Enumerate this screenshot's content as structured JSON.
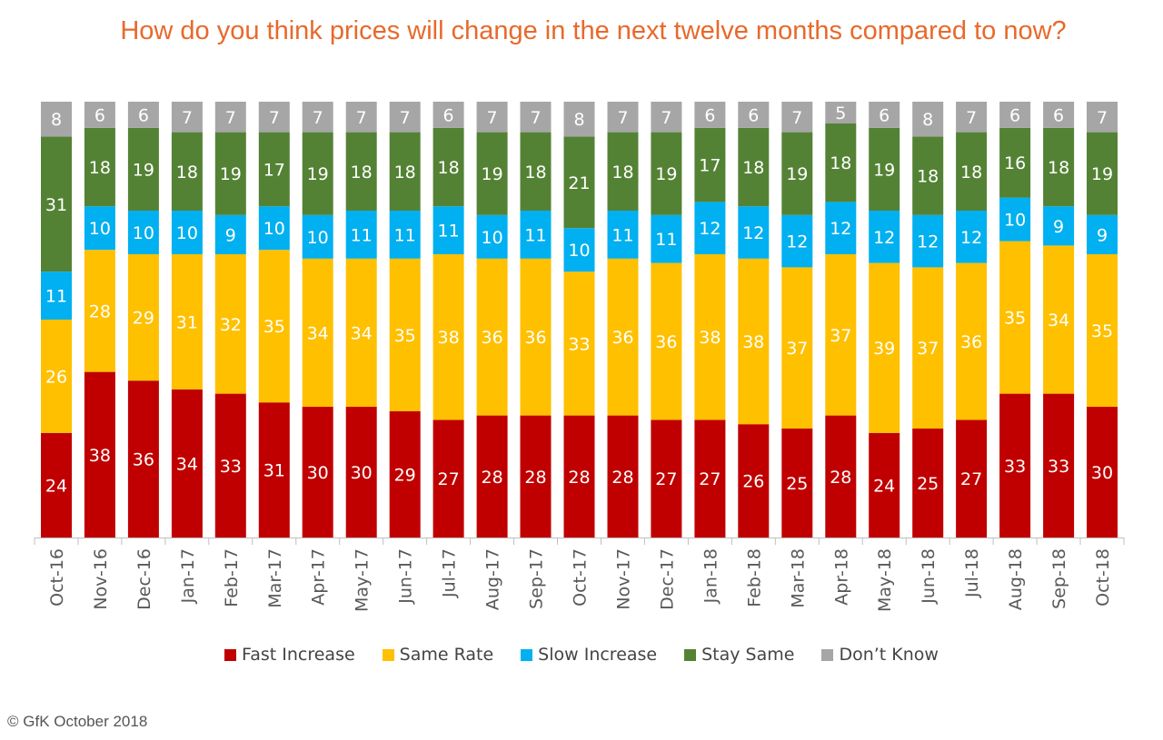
{
  "chart_data": {
    "type": "bar",
    "stacked": true,
    "title": "How do you think prices will change in the next twelve months compared to now?",
    "xlabel": "",
    "ylabel": "",
    "ylim": [
      0,
      100
    ],
    "categories": [
      "Oct-16",
      "Nov-16",
      "Dec-16",
      "Jan-17",
      "Feb-17",
      "Mar-17",
      "Apr-17",
      "May-17",
      "Jun-17",
      "Jul-17",
      "Aug-17",
      "Sep-17",
      "Oct-17",
      "Nov-17",
      "Dec-17",
      "Jan-18",
      "Feb-18",
      "Mar-18",
      "Apr-18",
      "May-18",
      "Jun-18",
      "Jul-18",
      "Aug-18",
      "Sep-18",
      "Oct-18"
    ],
    "series": [
      {
        "name": "Fast Increase",
        "color": "#c00000",
        "values": [
          24,
          38,
          36,
          34,
          33,
          31,
          30,
          30,
          29,
          27,
          28,
          28,
          28,
          28,
          27,
          27,
          26,
          25,
          28,
          24,
          25,
          27,
          33,
          33,
          30
        ]
      },
      {
        "name": "Same Rate",
        "color": "#ffc000",
        "values": [
          26,
          28,
          29,
          31,
          32,
          35,
          34,
          34,
          35,
          38,
          36,
          36,
          33,
          36,
          36,
          38,
          38,
          37,
          37,
          39,
          37,
          36,
          35,
          34,
          35
        ]
      },
      {
        "name": "Slow Increase",
        "color": "#00b0f0",
        "values": [
          11,
          10,
          10,
          10,
          9,
          10,
          10,
          11,
          11,
          11,
          10,
          11,
          10,
          11,
          11,
          12,
          12,
          12,
          12,
          12,
          12,
          12,
          10,
          9,
          9
        ]
      },
      {
        "name": "Stay Same",
        "color": "#548235",
        "values": [
          31,
          18,
          19,
          18,
          19,
          17,
          19,
          18,
          18,
          18,
          19,
          18,
          21,
          18,
          19,
          17,
          18,
          19,
          18,
          19,
          18,
          18,
          16,
          18,
          19
        ]
      },
      {
        "name": "Don’t Know",
        "color": "#a6a6a6",
        "values": [
          8,
          6,
          6,
          7,
          7,
          7,
          7,
          7,
          7,
          6,
          7,
          7,
          8,
          7,
          7,
          6,
          6,
          7,
          5,
          6,
          8,
          7,
          6,
          6,
          7
        ]
      }
    ],
    "legend_position": "bottom",
    "grid": false
  },
  "footer": {
    "copyright": "© GfK October 2018"
  }
}
